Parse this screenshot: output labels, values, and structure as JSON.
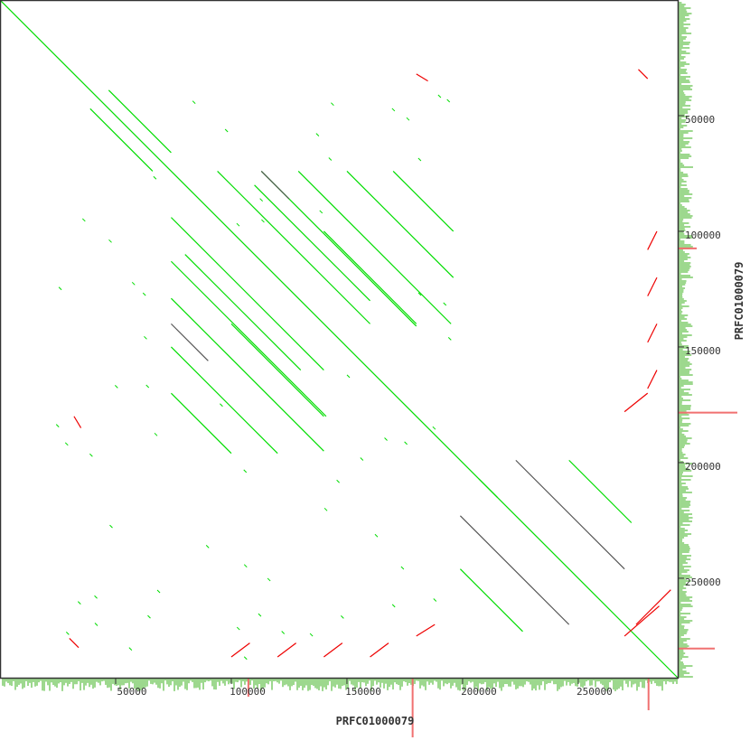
{
  "chart_data": {
    "type": "scatter",
    "subtype": "dot plot (self alignment)",
    "xlabel": "PRFC01000079",
    "ylabel": "PRFC01000079",
    "xlim": [
      0,
      293000
    ],
    "ylim": [
      0,
      293000
    ],
    "y_axis_direction": "top-to-bottom",
    "xticks": [
      50000,
      100000,
      150000,
      200000,
      250000
    ],
    "xtick_labels": [
      "50000",
      "100000",
      "150000",
      "200000",
      "250000"
    ],
    "yticks": [
      50000,
      100000,
      150000,
      200000,
      250000
    ],
    "ytick_labels": [
      "50000",
      "100000",
      "150000",
      "200000",
      "250000"
    ],
    "grid": false,
    "colors": {
      "forward": "#00dd00",
      "reverse": "#ee0000",
      "repeat": "#555555",
      "margin_forward": "#9dd88e",
      "margin_reverse": "#f07070",
      "frame": "#333333"
    },
    "segments": [
      [
        0,
        0,
        293000,
        293000,
        "forward"
      ],
      [
        47000,
        39000,
        74000,
        66000,
        "forward"
      ],
      [
        39000,
        47000,
        66000,
        74000,
        "forward"
      ],
      [
        113000,
        74000,
        180000,
        141000,
        "forward"
      ],
      [
        74000,
        113000,
        141000,
        180000,
        "forward"
      ],
      [
        129000,
        74000,
        195000,
        140000,
        "forward"
      ],
      [
        74000,
        129000,
        140000,
        195000,
        "forward"
      ],
      [
        94000,
        74000,
        160000,
        140000,
        "forward"
      ],
      [
        74000,
        94000,
        140000,
        160000,
        "forward"
      ],
      [
        150000,
        74000,
        196000,
        120000,
        "forward"
      ],
      [
        74000,
        150000,
        120000,
        196000,
        "forward"
      ],
      [
        170000,
        74000,
        196000,
        100000,
        "forward"
      ],
      [
        74000,
        170000,
        100000,
        196000,
        "forward"
      ],
      [
        80000,
        110000,
        130000,
        160000,
        "forward"
      ],
      [
        110000,
        80000,
        160000,
        130000,
        "forward"
      ],
      [
        100000,
        140000,
        140000,
        180000,
        "forward"
      ],
      [
        140000,
        100000,
        180000,
        140000,
        "forward"
      ],
      [
        113000,
        74000,
        125000,
        86000,
        "repeat"
      ],
      [
        74000,
        140000,
        90000,
        156000,
        "repeat"
      ],
      [
        223000,
        199000,
        270000,
        246000,
        "repeat"
      ],
      [
        199000,
        223000,
        246000,
        270000,
        "repeat"
      ],
      [
        246000,
        199000,
        273000,
        226000,
        "forward"
      ],
      [
        199000,
        246000,
        226000,
        273000,
        "forward"
      ],
      [
        207000,
        207000,
        215000,
        215000,
        "forward"
      ],
      [
        276000,
        30000,
        280000,
        34000,
        "reverse"
      ],
      [
        30000,
        276000,
        34000,
        280000,
        "reverse"
      ],
      [
        270000,
        178000,
        280000,
        170000,
        "reverse"
      ],
      [
        270000,
        275000,
        285000,
        262000,
        "reverse"
      ],
      [
        275000,
        270000,
        290000,
        255000,
        "reverse"
      ],
      [
        180000,
        275000,
        188000,
        270000,
        "reverse"
      ],
      [
        100000,
        284000,
        108000,
        278000,
        "reverse"
      ],
      [
        120000,
        284000,
        128000,
        278000,
        "reverse"
      ],
      [
        140000,
        284000,
        148000,
        278000,
        "reverse"
      ],
      [
        160000,
        284000,
        168000,
        278000,
        "reverse"
      ],
      [
        284000,
        100000,
        280000,
        108000,
        "reverse"
      ],
      [
        284000,
        120000,
        280000,
        128000,
        "reverse"
      ],
      [
        284000,
        140000,
        280000,
        148000,
        "reverse"
      ],
      [
        284000,
        160000,
        280000,
        168000,
        "reverse"
      ],
      [
        32000,
        180000,
        35000,
        185000,
        "reverse"
      ],
      [
        180000,
        32000,
        185000,
        35000,
        "reverse"
      ]
    ],
    "margin_spikes_x": [
      [
        107000,
        20,
        "margin_reverse"
      ],
      [
        178000,
        65,
        "margin_reverse"
      ],
      [
        280000,
        35,
        "margin_reverse"
      ]
    ],
    "margin_spikes_y": [
      [
        107000,
        20,
        "margin_reverse"
      ],
      [
        178000,
        65,
        "margin_reverse"
      ],
      [
        280000,
        40,
        "margin_reverse"
      ]
    ]
  }
}
